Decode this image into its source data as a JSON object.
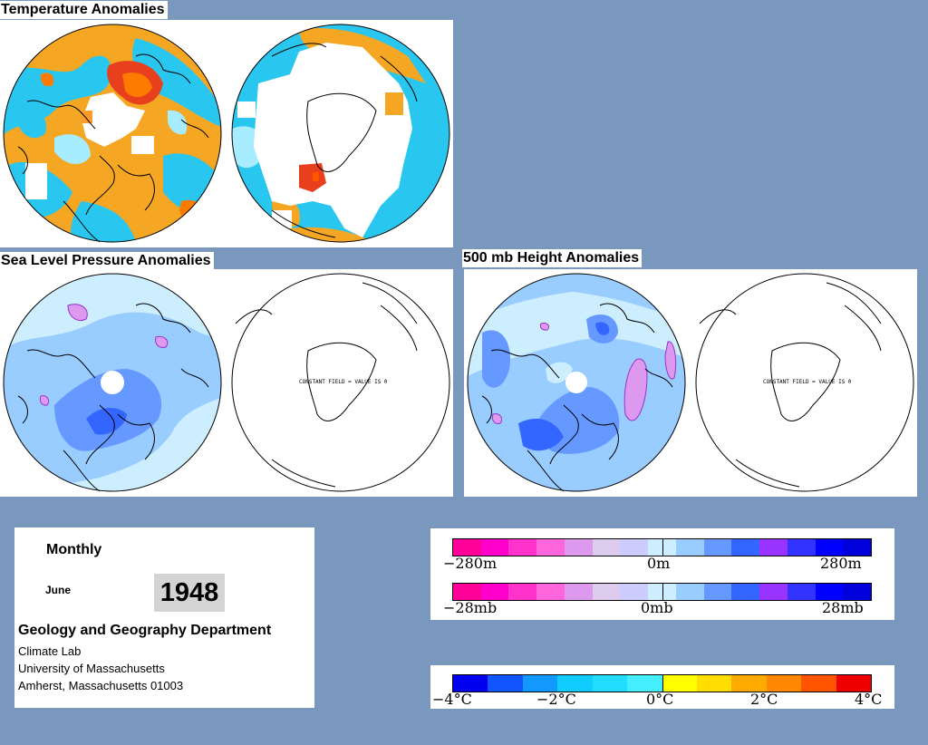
{
  "titles": {
    "temperature": "Temperature Anomalies",
    "slp": "Sea Level Pressure Anomalies",
    "height": "500 mb Height Anomalies"
  },
  "maps": {
    "constant_field_label": "CONSTANT FIELD = VALUE IS 0"
  },
  "info": {
    "period": "Monthly",
    "month": "June",
    "year": "1948",
    "department": "Geology and Geography Department",
    "lines": [
      "Climate Lab",
      "University of Massachusetts",
      "Amherst, Massachusetts 01003"
    ]
  },
  "legends": {
    "height_bar": {
      "labels": [
        "−280m",
        "0m",
        "280m"
      ],
      "colors": [
        "#ff0099",
        "#ff00cc",
        "#ff33cc",
        "#ff66dd",
        "#dd99ee",
        "#ddccee",
        "#ccccff",
        "#cceeff",
        "#99ccff",
        "#6699ff",
        "#3366ff",
        "#9933ff",
        "#3333ff",
        "#0000ff",
        "#0000dd"
      ]
    },
    "slp_bar": {
      "labels": [
        "−28mb",
        "0mb",
        "28mb"
      ]
    },
    "temp_bar": {
      "labels": [
        "−4°C",
        "−2°C",
        "0°C",
        "2°C",
        "4°C"
      ],
      "colors": [
        "#0000ee",
        "#1155ff",
        "#1199ff",
        "#11ccff",
        "#22ddff",
        "#44eeff",
        "#ffff00",
        "#ffdd00",
        "#ffaa00",
        "#ff8800",
        "#ff5500",
        "#ee0000"
      ]
    }
  },
  "colors": {
    "background": "#7a97bd",
    "warm": "#f5a623",
    "cold": "#4fc3f7",
    "hot": "#e8401c"
  }
}
